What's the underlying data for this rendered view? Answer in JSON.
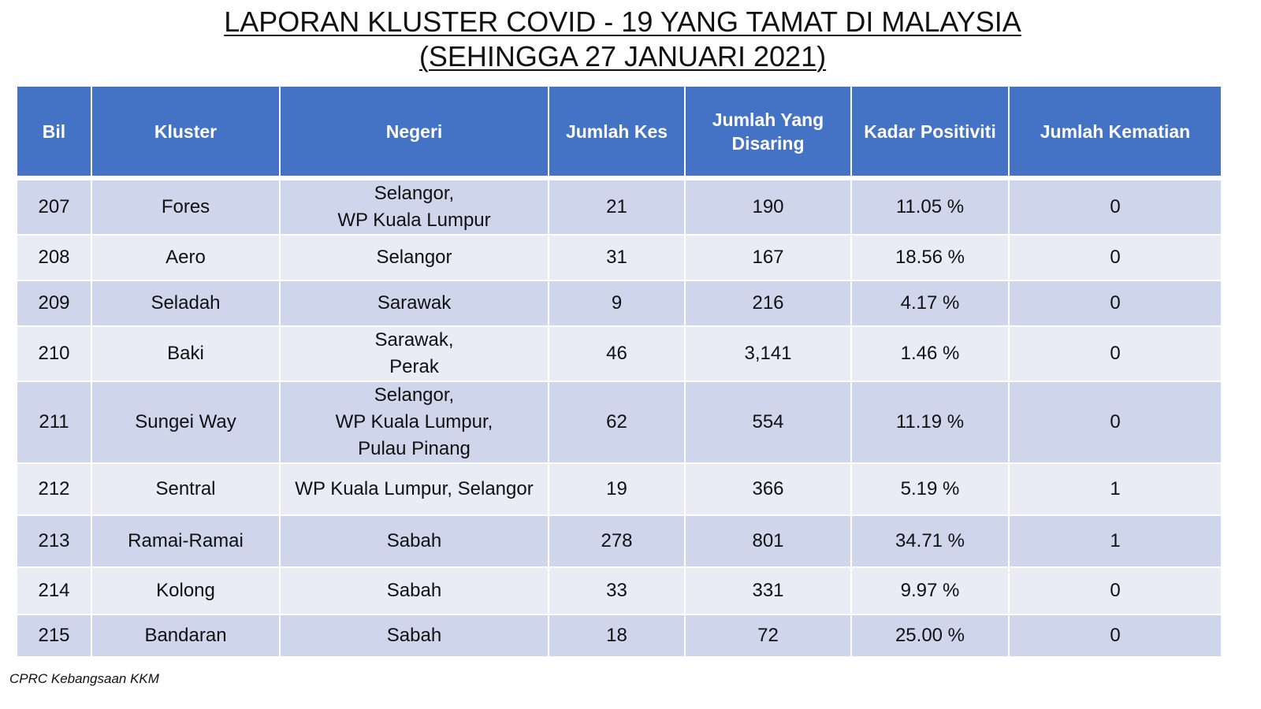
{
  "title": {
    "line1": "LAPORAN KLUSTER COVID - 19 YANG TAMAT DI MALAYSIA",
    "line2": "(SEHINGGA 27 JANUARI 2021)"
  },
  "table": {
    "headers": [
      "Bil",
      "Kluster",
      "Negeri",
      "Jumlah Kes",
      "Jumlah Yang Disaring",
      "Kadar Positiviti",
      "Jumlah Kematian"
    ],
    "rows": [
      [
        "207",
        "Fores",
        "Selangor,\nWP Kuala Lumpur",
        "21",
        "190",
        "11.05 %",
        "0"
      ],
      [
        "208",
        "Aero",
        "Selangor",
        "31",
        "167",
        "18.56 %",
        "0"
      ],
      [
        "209",
        "Seladah",
        "Sarawak",
        "9",
        "216",
        "4.17 %",
        "0"
      ],
      [
        "210",
        "Baki",
        "Sarawak,\nPerak",
        "46",
        "3,141",
        "1.46 %",
        "0"
      ],
      [
        "211",
        "Sungei Way",
        "Selangor,\nWP Kuala Lumpur,\nPulau Pinang",
        "62",
        "554",
        "11.19 %",
        "0"
      ],
      [
        "212",
        "Sentral",
        "WP Kuala Lumpur, Selangor",
        "19",
        "366",
        "5.19 %",
        "1"
      ],
      [
        "213",
        "Ramai-Ramai",
        "Sabah",
        "278",
        "801",
        "34.71 %",
        "1"
      ],
      [
        "214",
        "Kolong",
        "Sabah",
        "33",
        "331",
        "9.97 %",
        "0"
      ],
      [
        "215",
        "Bandaran",
        "Sabah",
        "18",
        "72",
        "25.00 %",
        "0"
      ]
    ]
  },
  "footer": "CPRC Kebangsaan KKM",
  "colors": {
    "header_bg": "#4472c4",
    "row_dark": "#cfd5ea",
    "row_light": "#e9ebf5"
  }
}
